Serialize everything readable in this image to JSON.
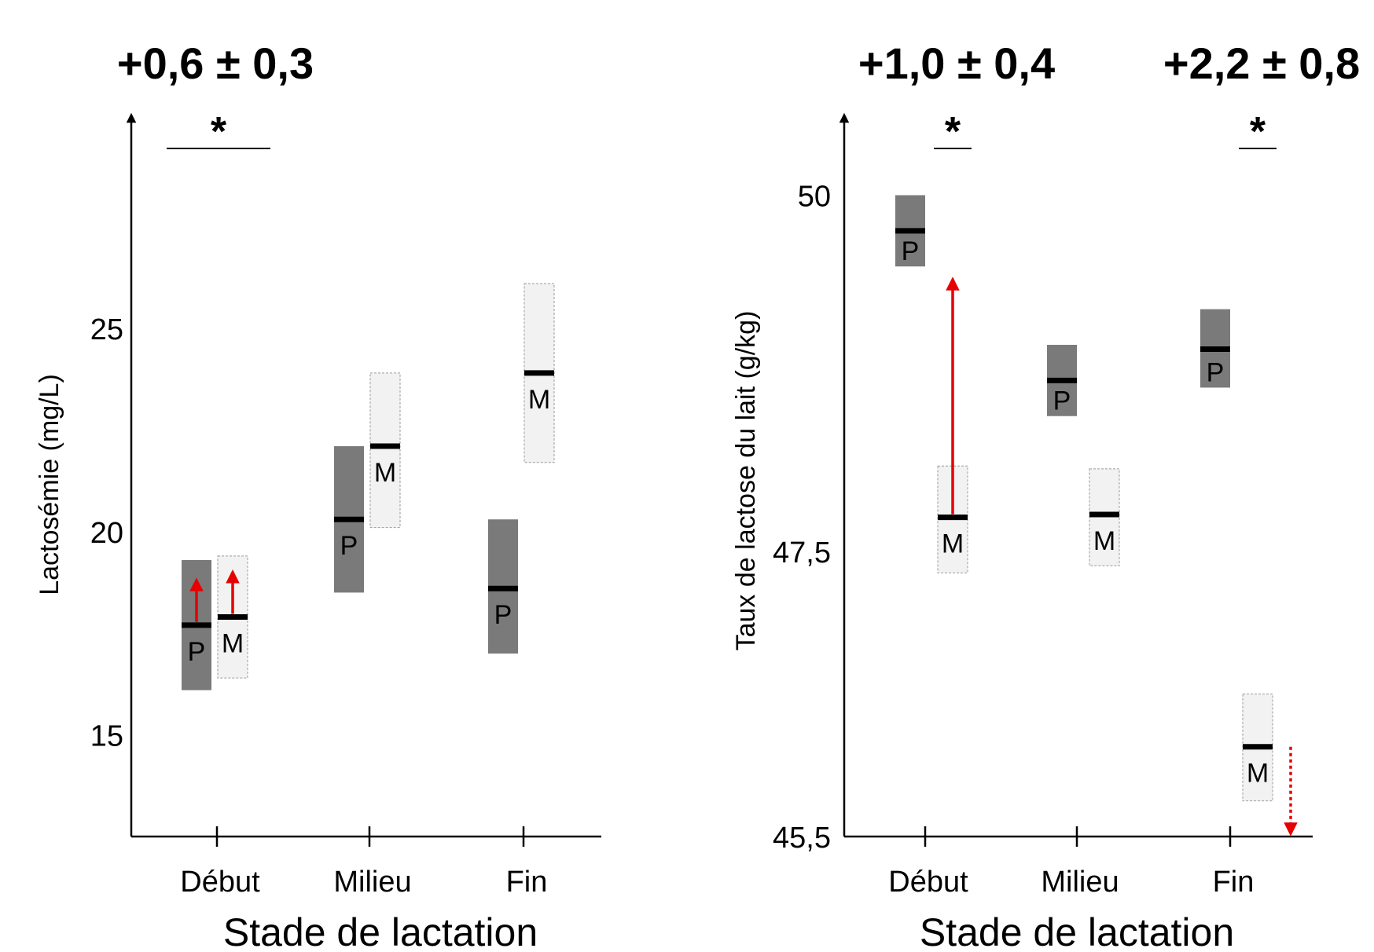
{
  "colors": {
    "P_fill": "#7a7a7a",
    "M_fill": "#f2f2f2",
    "M_border": "#9a9a9a",
    "median": "#000000",
    "arrow": "#e60000"
  },
  "chart_data": [
    {
      "type": "box",
      "xlabel": "Stade de lactation",
      "ylabel": "Lactosémie (mg/L)",
      "ylim": [
        12.5,
        29.5
      ],
      "yticks": [
        15,
        20,
        25
      ],
      "ytick_labels": [
        "15",
        "20",
        "25"
      ],
      "categories": [
        "Début",
        "Milieu",
        "Fin"
      ],
      "series": [
        {
          "name": "P",
          "boxes": [
            {
              "category": "Début",
              "low": 16.1,
              "high": 19.3,
              "median": 17.7
            },
            {
              "category": "Milieu",
              "low": 18.5,
              "high": 22.1,
              "median": 20.3
            },
            {
              "category": "Fin",
              "low": 17.0,
              "high": 20.3,
              "median": 18.6
            }
          ]
        },
        {
          "name": "M",
          "boxes": [
            {
              "category": "Début",
              "low": 16.4,
              "high": 19.4,
              "median": 17.9
            },
            {
              "category": "Milieu",
              "low": 20.1,
              "high": 23.9,
              "median": 22.1
            },
            {
              "category": "Fin",
              "low": 21.7,
              "high": 26.1,
              "median": 23.9
            }
          ]
        }
      ],
      "arrows": [
        {
          "category": "Début",
          "series": "P",
          "from": 17.7,
          "to": 18.7,
          "style": "solid"
        },
        {
          "category": "Début",
          "series": "M",
          "from": 17.9,
          "to": 18.9,
          "style": "solid"
        }
      ],
      "annotations": [
        {
          "text": "+0,6 ± 0,3",
          "category": "Début",
          "star": "*",
          "span": "both"
        }
      ]
    },
    {
      "type": "box",
      "xlabel": "Stade de lactation",
      "ylabel": "Taux de lactose du lait (g/kg)",
      "ylim": [
        45.5,
        50.35
      ],
      "yticks": [
        45.5,
        47.5,
        50
      ],
      "ytick_labels": [
        "45,5",
        "47,5",
        "50"
      ],
      "categories": [
        "Début",
        "Milieu",
        "Fin"
      ],
      "series": [
        {
          "name": "P",
          "boxes": [
            {
              "category": "Début",
              "low": 49.5,
              "high": 50.0,
              "median": 49.75
            },
            {
              "category": "Milieu",
              "low": 48.45,
              "high": 48.95,
              "median": 48.7
            },
            {
              "category": "Fin",
              "low": 48.65,
              "high": 49.2,
              "median": 48.92
            }
          ]
        },
        {
          "name": "M",
          "boxes": [
            {
              "category": "Début",
              "low": 47.35,
              "high": 48.1,
              "median": 47.74
            },
            {
              "category": "Milieu",
              "low": 47.4,
              "high": 48.08,
              "median": 47.76
            },
            {
              "category": "Fin",
              "low": 45.75,
              "high": 46.5,
              "median": 46.13
            }
          ]
        }
      ],
      "arrows": [
        {
          "category": "Début",
          "series": "M",
          "from": 47.74,
          "to": 49.38,
          "style": "solid"
        },
        {
          "category": "Fin",
          "series": "M",
          "from": 46.13,
          "to": 45.55,
          "style": "dotted"
        }
      ],
      "annotations": [
        {
          "text": "+1,0 ± 0,4",
          "category": "Début",
          "star": "*",
          "span": "M"
        },
        {
          "text": "+2,2 ± 0,8",
          "category": "Fin",
          "star": "*",
          "span": "M"
        }
      ]
    }
  ]
}
